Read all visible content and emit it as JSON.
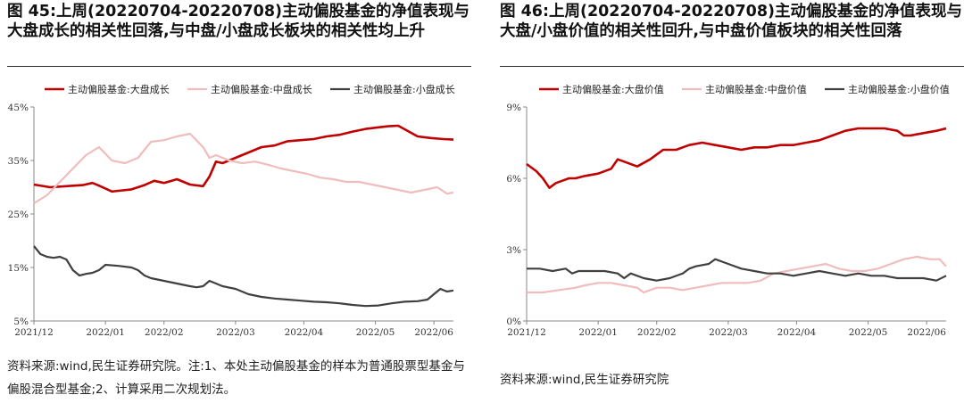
{
  "charts": [
    {
      "title": "图 45:上周(20220704-20220708)主动偏股基金的净值表现与大盘成长的相关性回落,与中盘/小盘成长板块的相关性均上升",
      "note": "资料来源:wind,民生证券研究院。注:1、本处主动偏股基金的样本为普通股票型基金与偏股混合型基金;2、计算采用二次规划法。"
    },
    {
      "title": "图 46:上周(20220704-20220708)主动偏股基金的净值表现与大盘/小盘价值的相关性回升,与中盘价值板块的相关性回落",
      "note": "资料来源:wind,民生证券研究院"
    }
  ],
  "chart_data": [
    {
      "type": "line",
      "xlabel": "",
      "ylabel": "",
      "xlim": [
        0,
        129
      ],
      "ylim": [
        5,
        45
      ],
      "yticks": [
        5,
        15,
        25,
        35,
        45
      ],
      "ytick_labels": [
        "5%",
        "15%",
        "25%",
        "35%",
        "45%"
      ],
      "xticks": [
        0,
        22,
        40,
        62,
        83,
        105,
        123
      ],
      "xtick_labels": [
        "2021/12",
        "2022/01",
        "2022/02",
        "2022/03",
        "2022/04",
        "2022/05",
        "2022/06"
      ],
      "grid": false,
      "legend_position": "top",
      "series": [
        {
          "name": "主动偏股基金:大盘成长",
          "color": "#c00000",
          "width": 2.6,
          "x": [
            0,
            5,
            10,
            15,
            18,
            20,
            24,
            30,
            34,
            37,
            40,
            44,
            48,
            52,
            54,
            56,
            58,
            62,
            66,
            70,
            74,
            78,
            82,
            86,
            90,
            94,
            98,
            102,
            106,
            109,
            112,
            115,
            118,
            122,
            126,
            129
          ],
          "y": [
            30.5,
            30.0,
            30.2,
            30.4,
            30.8,
            30.3,
            29.2,
            29.6,
            30.4,
            31.2,
            30.8,
            31.5,
            30.5,
            30.2,
            32.0,
            34.8,
            34.5,
            35.5,
            36.5,
            37.5,
            37.8,
            38.6,
            38.8,
            39.0,
            39.5,
            39.8,
            40.4,
            40.9,
            41.2,
            41.4,
            41.5,
            40.5,
            39.5,
            39.2,
            39.0,
            38.9
          ]
        },
        {
          "name": "主动偏股基金:中盘成长",
          "color": "#f0bcbc",
          "width": 2.2,
          "x": [
            0,
            4,
            8,
            12,
            16,
            20,
            24,
            28,
            32,
            36,
            40,
            44,
            48,
            52,
            54,
            56,
            60,
            64,
            68,
            72,
            76,
            80,
            84,
            88,
            92,
            96,
            100,
            104,
            108,
            112,
            116,
            120,
            124,
            127,
            129
          ],
          "y": [
            27.0,
            28.5,
            31.0,
            33.5,
            36.0,
            37.5,
            35.0,
            34.5,
            35.5,
            38.5,
            38.8,
            39.5,
            40.0,
            37.5,
            35.5,
            36.0,
            35.0,
            34.5,
            34.8,
            34.2,
            33.5,
            33.0,
            32.5,
            31.8,
            31.5,
            31.0,
            31.0,
            30.5,
            30.0,
            29.5,
            29.0,
            29.5,
            30.0,
            28.8,
            29.0
          ]
        },
        {
          "name": "主动偏股基金:小盘成长",
          "color": "#404040",
          "width": 2.2,
          "x": [
            0,
            2,
            4,
            6,
            8,
            10,
            12,
            14,
            16,
            18,
            20,
            22,
            26,
            30,
            32,
            34,
            36,
            40,
            44,
            48,
            50,
            52,
            54,
            58,
            62,
            66,
            70,
            74,
            78,
            82,
            86,
            90,
            94,
            98,
            102,
            106,
            110,
            114,
            118,
            121,
            123,
            125,
            127,
            129
          ],
          "y": [
            19.0,
            17.5,
            17.0,
            16.8,
            17.0,
            16.5,
            14.5,
            13.5,
            13.8,
            14.0,
            14.5,
            15.5,
            15.3,
            15.0,
            14.5,
            13.5,
            13.0,
            12.5,
            12.0,
            11.5,
            11.3,
            11.5,
            12.5,
            11.5,
            11.0,
            10.0,
            9.5,
            9.2,
            9.0,
            8.8,
            8.6,
            8.5,
            8.3,
            8.0,
            7.8,
            7.9,
            8.3,
            8.6,
            8.7,
            9.0,
            10.0,
            11.0,
            10.5,
            10.7
          ]
        }
      ]
    },
    {
      "type": "line",
      "xlabel": "",
      "ylabel": "",
      "xlim": [
        0,
        129
      ],
      "ylim": [
        0,
        9
      ],
      "yticks": [
        0,
        3,
        6,
        9
      ],
      "ytick_labels": [
        "0%",
        "3%",
        "6%",
        "9%"
      ],
      "xticks": [
        0,
        22,
        40,
        62,
        83,
        105,
        123
      ],
      "xtick_labels": [
        "2021/12",
        "2022/01",
        "2022/02",
        "2022/03",
        "2022/04",
        "2022/05",
        "2022/06"
      ],
      "grid": false,
      "legend_position": "top",
      "series": [
        {
          "name": "主动偏股基金:大盘价值",
          "color": "#c00000",
          "width": 2.6,
          "x": [
            0,
            3,
            5,
            7,
            9,
            11,
            13,
            15,
            18,
            22,
            26,
            28,
            30,
            34,
            38,
            40,
            42,
            46,
            50,
            54,
            58,
            62,
            66,
            70,
            74,
            78,
            82,
            86,
            90,
            94,
            98,
            102,
            106,
            110,
            114,
            116,
            118,
            122,
            126,
            129
          ],
          "y": [
            6.6,
            6.3,
            6.0,
            5.6,
            5.8,
            5.9,
            6.0,
            6.0,
            6.1,
            6.2,
            6.4,
            6.8,
            6.7,
            6.5,
            6.8,
            7.0,
            7.2,
            7.2,
            7.4,
            7.5,
            7.4,
            7.3,
            7.2,
            7.3,
            7.3,
            7.4,
            7.4,
            7.5,
            7.6,
            7.8,
            8.0,
            8.1,
            8.1,
            8.1,
            8.0,
            7.8,
            7.8,
            7.9,
            8.0,
            8.1
          ]
        },
        {
          "name": "主动偏股基金:中盘价值",
          "color": "#f0bcbc",
          "width": 2.2,
          "x": [
            0,
            5,
            10,
            15,
            18,
            22,
            26,
            30,
            34,
            36,
            40,
            44,
            48,
            52,
            56,
            60,
            64,
            68,
            72,
            76,
            80,
            84,
            88,
            92,
            96,
            100,
            104,
            108,
            112,
            116,
            120,
            124,
            127,
            129
          ],
          "y": [
            1.2,
            1.2,
            1.3,
            1.4,
            1.5,
            1.6,
            1.6,
            1.5,
            1.4,
            1.2,
            1.4,
            1.4,
            1.3,
            1.4,
            1.5,
            1.6,
            1.6,
            1.6,
            1.7,
            2.0,
            2.1,
            2.2,
            2.3,
            2.4,
            2.2,
            2.1,
            2.1,
            2.2,
            2.4,
            2.6,
            2.7,
            2.6,
            2.6,
            2.3
          ]
        },
        {
          "name": "主动偏股基金:小盘价值",
          "color": "#404040",
          "width": 2.2,
          "x": [
            0,
            4,
            8,
            12,
            14,
            16,
            20,
            24,
            28,
            30,
            32,
            36,
            40,
            44,
            48,
            50,
            52,
            56,
            58,
            62,
            66,
            70,
            74,
            78,
            82,
            86,
            90,
            94,
            98,
            102,
            106,
            110,
            114,
            118,
            122,
            126,
            129
          ],
          "y": [
            2.2,
            2.2,
            2.1,
            2.2,
            2.0,
            2.1,
            2.1,
            2.1,
            2.0,
            1.8,
            2.0,
            1.8,
            1.7,
            1.8,
            2.0,
            2.2,
            2.3,
            2.4,
            2.6,
            2.4,
            2.2,
            2.1,
            2.0,
            2.0,
            1.9,
            2.0,
            2.1,
            2.0,
            1.9,
            2.0,
            1.9,
            1.9,
            1.8,
            1.8,
            1.8,
            1.7,
            1.9
          ]
        }
      ]
    }
  ]
}
